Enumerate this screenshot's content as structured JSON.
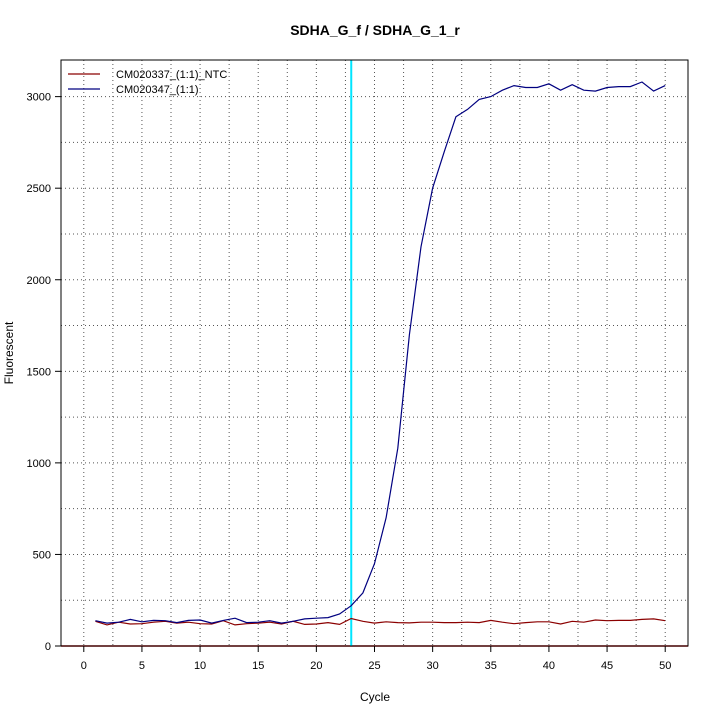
{
  "chart_data": {
    "type": "line",
    "title": "SDHA_G_f / SDHA_G_1_r",
    "xlabel": "Cycle",
    "ylabel": "Fluorescent",
    "xlim": [
      -1.96,
      51.96
    ],
    "ylim": [
      0,
      3200
    ],
    "x_ticks": [
      0,
      5,
      10,
      15,
      20,
      25,
      30,
      35,
      40,
      45,
      50
    ],
    "y_ticks": [
      0,
      500,
      1000,
      1500,
      2000,
      2500,
      3000
    ],
    "grid": true,
    "legend_position": "top-left",
    "threshold_line": {
      "cycle": 23,
      "color": "#00e5ff"
    },
    "baseline": {
      "value": 0,
      "color": "#cc0000"
    },
    "series": [
      {
        "name": "CM020337_(1:1)_NTC",
        "color": "#8b0000",
        "x": [
          1,
          2,
          3,
          4,
          5,
          6,
          7,
          8,
          9,
          10,
          11,
          12,
          13,
          14,
          15,
          16,
          17,
          18,
          19,
          20,
          21,
          22,
          23,
          24,
          25,
          26,
          27,
          28,
          29,
          30,
          31,
          32,
          33,
          34,
          35,
          36,
          37,
          38,
          39,
          40,
          41,
          42,
          43,
          44,
          45,
          46,
          47,
          48,
          49,
          50
        ],
        "values": [
          135,
          115,
          130,
          120,
          122,
          130,
          135,
          125,
          130,
          122,
          120,
          138,
          115,
          122,
          125,
          130,
          120,
          135,
          118,
          120,
          128,
          118,
          150,
          135,
          125,
          132,
          128,
          126,
          130,
          130,
          128,
          128,
          130,
          128,
          140,
          130,
          122,
          128,
          132,
          132,
          120,
          135,
          130,
          142,
          138,
          140,
          140,
          145,
          148,
          138
        ]
      },
      {
        "name": "CM020347_(1:1)",
        "color": "#000080",
        "x": [
          1,
          2,
          3,
          4,
          5,
          6,
          7,
          8,
          9,
          10,
          11,
          12,
          13,
          14,
          15,
          16,
          17,
          18,
          19,
          20,
          21,
          22,
          23,
          24,
          25,
          26,
          27,
          28,
          29,
          30,
          31,
          32,
          33,
          34,
          35,
          36,
          37,
          38,
          39,
          40,
          41,
          42,
          43,
          44,
          45,
          46,
          47,
          48,
          49,
          50
        ],
        "values": [
          138,
          125,
          130,
          145,
          132,
          140,
          138,
          128,
          140,
          142,
          125,
          140,
          152,
          128,
          130,
          138,
          125,
          135,
          148,
          152,
          155,
          175,
          220,
          290,
          450,
          700,
          1080,
          1700,
          2180,
          2500,
          2700,
          2890,
          2930,
          2985,
          3000,
          3035,
          3060,
          3050,
          3050,
          3070,
          3035,
          3065,
          3035,
          3030,
          3050,
          3055,
          3055,
          3080,
          3030,
          3060
        ]
      }
    ]
  }
}
